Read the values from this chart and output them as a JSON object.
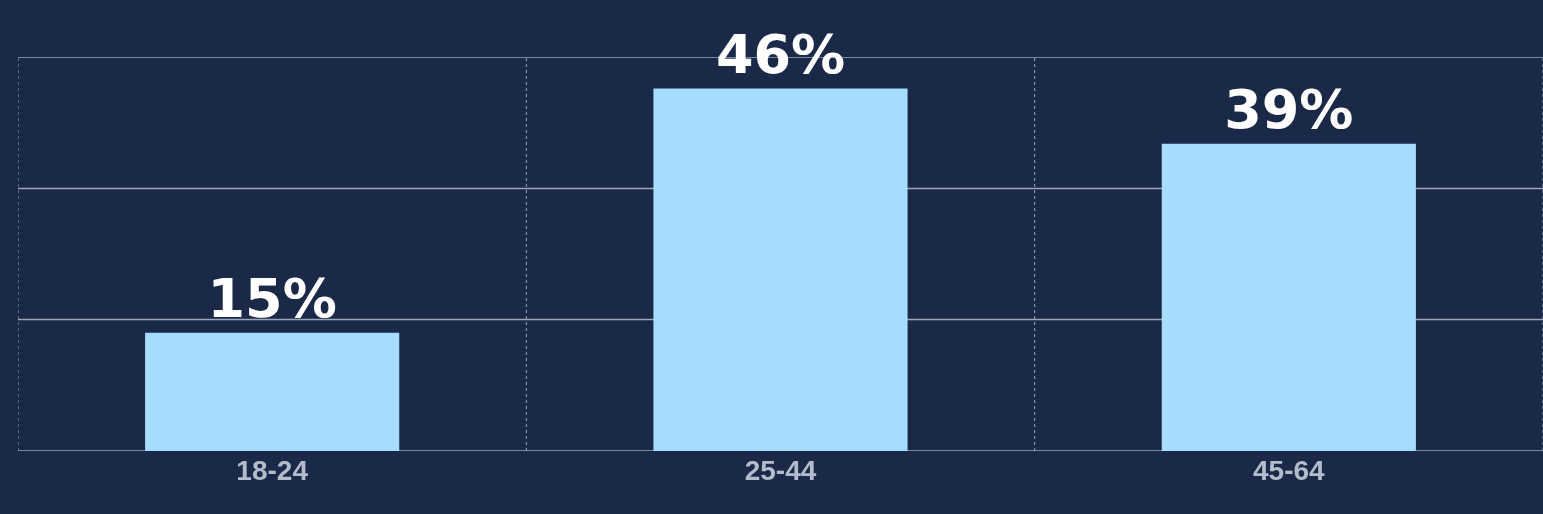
{
  "chart_data": {
    "type": "bar",
    "categories": [
      "18-24",
      "25-44",
      "45-64"
    ],
    "values": [
      15,
      46,
      39
    ],
    "color": "#a6dcfe",
    "value_labels": [
      "15%",
      "46%",
      "39%"
    ],
    "ylim": [
      0,
      50
    ],
    "yticks": [
      {
        "value": 0,
        "label": null
      },
      {
        "value": 16.7,
        "label": null
      },
      {
        "value": 33.3,
        "label": null
      },
      {
        "value": 50,
        "label": null
      }
    ],
    "tick_labels": "x",
    "grid": true
  }
}
